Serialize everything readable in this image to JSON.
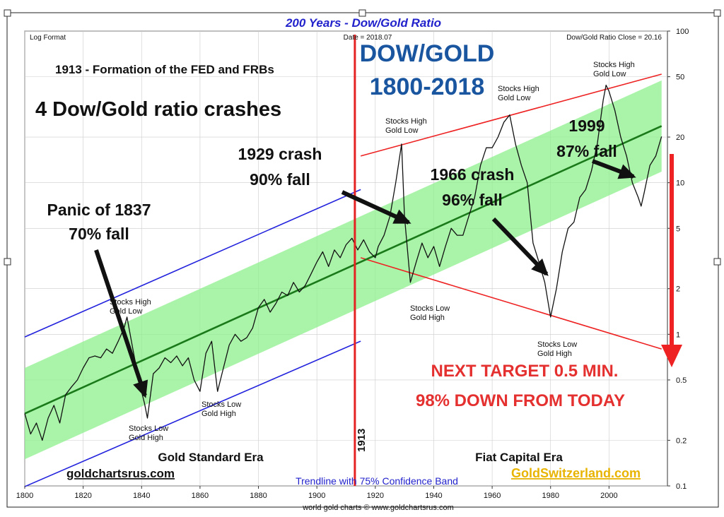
{
  "chart_data": {
    "type": "line",
    "title": "200 Years - Dow/Gold Ratio",
    "subtitle_left": "Log Format",
    "subtitle_center": "Date = 2018.07",
    "subtitle_right": "Dow/Gold Ratio Close = 20.16",
    "y_scale": "log",
    "xlim": [
      1800,
      2020
    ],
    "ylim": [
      0.1,
      100
    ],
    "x_ticks": [
      "1800",
      "1820",
      "1840",
      "1860",
      "1880",
      "1900",
      "1920",
      "1940",
      "1960",
      "1980",
      "2000"
    ],
    "y_ticks": [
      "100",
      "50",
      "20",
      "10",
      "5",
      "2",
      "1",
      "0.5",
      "0.2",
      "0.1"
    ],
    "grid": true,
    "colors": {
      "title": "#2222cc",
      "headline_blue": "#1a56a0",
      "band_fill": "#8ef08e",
      "trend_line": "#1a7a1a",
      "channel_blue": "#2222dd",
      "channel_red": "#ee2222",
      "target_red": "#e53030",
      "gold_text": "#e8b400",
      "price_line": "#111111",
      "grid": "#cccccc"
    },
    "series": [
      {
        "x": [
          1800,
          1802,
          1804,
          1806,
          1808,
          1810,
          1812,
          1814,
          1816,
          1818,
          1820,
          1822,
          1824,
          1826,
          1828,
          1830,
          1832,
          1834,
          1835,
          1837,
          1839,
          1841,
          1842,
          1844,
          1846,
          1848,
          1850,
          1852,
          1854,
          1856,
          1858,
          1860,
          1862,
          1864,
          1866,
          1868,
          1870,
          1872,
          1874,
          1876,
          1878,
          1880,
          1882,
          1884,
          1886,
          1888,
          1890,
          1892,
          1894,
          1896,
          1898,
          1900,
          1902,
          1904,
          1906,
          1908,
          1910,
          1912,
          1914,
          1916,
          1918,
          1920,
          1921,
          1923,
          1925,
          1927,
          1929,
          1930,
          1932,
          1934,
          1936,
          1938,
          1940,
          1942,
          1944,
          1946,
          1948,
          1950,
          1952,
          1954,
          1956,
          1958,
          1960,
          1962,
          1964,
          1966,
          1968,
          1970,
          1972,
          1974,
          1976,
          1978,
          1980,
          1982,
          1984,
          1986,
          1988,
          1990,
          1992,
          1994,
          1996,
          1998,
          1999,
          2000,
          2002,
          2004,
          2006,
          2008,
          2010,
          2011,
          2012,
          2014,
          2016,
          2018
        ],
        "values": [
          0.3,
          0.22,
          0.26,
          0.2,
          0.28,
          0.34,
          0.26,
          0.4,
          0.45,
          0.5,
          0.6,
          0.7,
          0.72,
          0.7,
          0.8,
          0.75,
          0.9,
          1.1,
          1.3,
          0.8,
          0.5,
          0.35,
          0.28,
          0.55,
          0.6,
          0.7,
          0.65,
          0.72,
          0.62,
          0.7,
          0.5,
          0.42,
          0.75,
          0.9,
          0.42,
          0.6,
          0.85,
          1.0,
          0.9,
          0.95,
          1.1,
          1.5,
          1.7,
          1.4,
          1.6,
          1.9,
          1.8,
          2.2,
          1.9,
          2.1,
          2.5,
          3.0,
          3.5,
          2.8,
          3.6,
          3.2,
          3.9,
          4.3,
          3.6,
          4.2,
          3.5,
          3.2,
          3.8,
          4.5,
          6.0,
          10.0,
          18.0,
          6.0,
          2.2,
          3.0,
          4.0,
          3.2,
          3.8,
          2.8,
          3.8,
          5.0,
          4.5,
          4.5,
          6.0,
          8.0,
          13.0,
          17.0,
          17.0,
          20.0,
          25.0,
          28.0,
          18.0,
          13.0,
          10.0,
          4.0,
          3.0,
          2.2,
          1.3,
          2.0,
          3.5,
          5.0,
          5.5,
          8.0,
          9.0,
          12.0,
          18.0,
          35.0,
          44.0,
          40.0,
          30.0,
          20.0,
          15.0,
          10.0,
          8.0,
          7.0,
          8.5,
          13.0,
          15.0,
          20.16
        ]
      }
    ],
    "annotations": {
      "headline_line1": "DOW/GOLD",
      "headline_line2": "1800-2018",
      "fed_note": "1913 - Formation of the FED and FRBs",
      "crashes_note": "4 Dow/Gold ratio crashes",
      "panic_line1": "Panic of 1837",
      "panic_line2": "70% fall",
      "crash1929_line1": "1929 crash",
      "crash1929_line2": "90% fall",
      "crash1966_line1": "1966 crash",
      "crash1966_line2": "96% fall",
      "crash1999_line1": "1999",
      "crash1999_line2": "87% fall",
      "target_line1": "NEXT TARGET 0.5 MIN.",
      "target_line2": "98% DOWN FROM TODAY",
      "year_1913": "1913",
      "sh_1835_line1": "Stocks High",
      "sh_1835_line2": "Gold Low",
      "sl_1842_line1": "Stocks Low",
      "sl_1842_line2": "Gold High",
      "sl_1865_line1": "Stocks Low",
      "sl_1865_line2": "Gold High",
      "sh_1929_line1": "Stocks High",
      "sh_1929_line2": "Gold Low",
      "sl_1932_line1": "Stocks Low",
      "sl_1932_line2": "Gold High",
      "sh_1966_line1": "Stocks High",
      "sh_1966_line2": "Gold Low",
      "sl_1980_line1": "Stocks Low",
      "sl_1980_line2": "Gold High",
      "sh_1999_line1": "Stocks High",
      "sh_1999_line2": "Gold Low",
      "era_gold": "Gold Standard Era",
      "era_fiat": "Fiat Capital Era",
      "site_left": "goldchartsrus.com",
      "site_right": "GoldSwitzerland.com",
      "trendline_note": "Trendline with 75% Confidence Band",
      "footer": "world gold charts © www.goldchartsrus.com"
    }
  }
}
